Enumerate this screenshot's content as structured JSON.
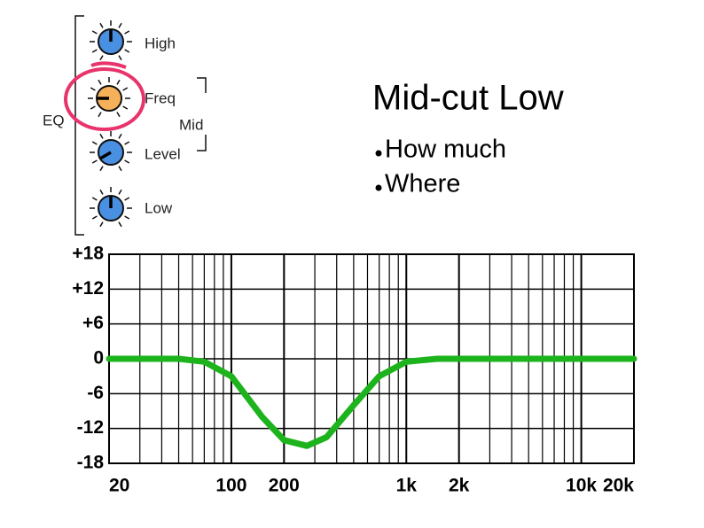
{
  "panel": {
    "group": "EQ",
    "knobs": [
      "High",
      "Freq",
      "Level",
      "Low"
    ],
    "mid_group": "Mid"
  },
  "slide": {
    "title": "Mid-cut Low",
    "bullets": [
      "How much",
      "Where"
    ]
  },
  "chart_data": {
    "type": "line",
    "log_x": true,
    "grid": true,
    "x": [
      20,
      50,
      70,
      100,
      150,
      200,
      270,
      350,
      500,
      700,
      1000,
      1500,
      20000
    ],
    "series": [
      {
        "color": "#1db31d",
        "values": [
          0,
          0,
          -0.5,
          -3,
          -10,
          -14,
          -15,
          -13.5,
          -8,
          -3,
          -0.5,
          0,
          0
        ]
      }
    ],
    "xlim": [
      20,
      20000
    ],
    "xticks": [
      20,
      100,
      200,
      {
        "value": 1000,
        "label": "1k"
      },
      {
        "value": 2000,
        "label": "2k"
      },
      {
        "value": 10000,
        "label": "10k"
      },
      {
        "value": 20000,
        "label": "20k"
      }
    ],
    "x_minor_ticks": [
      30,
      40,
      50,
      60,
      70,
      80,
      90,
      300,
      400,
      500,
      600,
      700,
      800,
      900,
      3000,
      4000,
      5000,
      6000,
      7000,
      8000,
      9000
    ],
    "ylim": [
      -18,
      18
    ],
    "yticks": [
      {
        "value": 18,
        "label": "+18"
      },
      {
        "value": 12,
        "label": "+12"
      },
      {
        "value": 6,
        "label": "+6"
      },
      0,
      -6,
      -12,
      -18
    ]
  }
}
